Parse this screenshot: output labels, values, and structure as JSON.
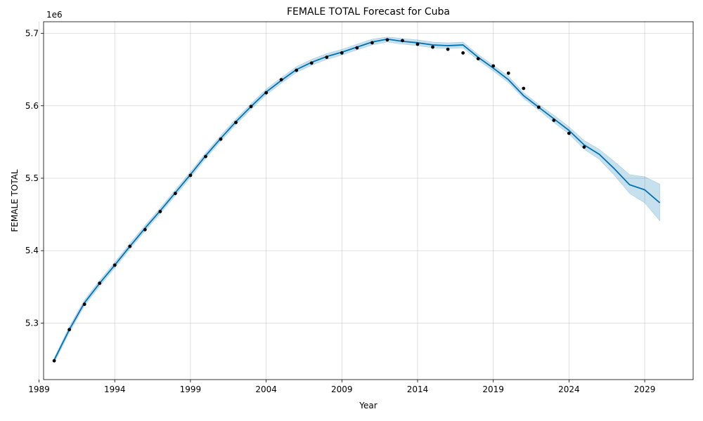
{
  "chart_data": {
    "type": "line",
    "title": "FEMALE TOTAL Forecast for Cuba",
    "xlabel": "Year",
    "ylabel": "FEMALE TOTAL",
    "y_offset_text": "1e6",
    "xlim": [
      1989.3,
      2032.2
    ],
    "ylim": [
      5222000,
      5716000
    ],
    "x_ticks": [
      1989,
      1994,
      1999,
      2004,
      2009,
      2014,
      2019,
      2024,
      2029
    ],
    "x_tick_labels": [
      "1989",
      "1994",
      "1999",
      "2004",
      "2009",
      "2014",
      "2019",
      "2024",
      "2029"
    ],
    "y_ticks": [
      5300000,
      5400000,
      5500000,
      5600000,
      5700000
    ],
    "y_tick_labels": [
      "5.3",
      "5.4",
      "5.5",
      "5.6",
      "5.7"
    ],
    "grid": true,
    "colors": {
      "forecast": "#0072B2",
      "band": "#0072B2",
      "observed": "#000000"
    },
    "series": [
      {
        "role": "observed",
        "style": "points",
        "x": [
          1990,
          1991,
          1992,
          1993,
          1994,
          1995,
          1996,
          1997,
          1998,
          1999,
          2000,
          2001,
          2002,
          2003,
          2004,
          2005,
          2006,
          2007,
          2008,
          2009,
          2010,
          2011,
          2012,
          2013,
          2014,
          2015,
          2016,
          2017,
          2018,
          2019,
          2020,
          2021,
          2022,
          2023,
          2024,
          2025
        ],
        "values": [
          5248000,
          5291000,
          5326000,
          5355000,
          5380000,
          5406000,
          5429000,
          5454000,
          5479000,
          5504000,
          5530000,
          5554000,
          5577000,
          5599000,
          5618000,
          5636000,
          5649000,
          5659000,
          5667000,
          5673000,
          5680000,
          5687000,
          5691000,
          5690000,
          5685000,
          5681000,
          5678000,
          5673000,
          5665000,
          5655000,
          5645000,
          5624000,
          5598000,
          5580000,
          5562000,
          5543000
        ]
      },
      {
        "role": "forecast",
        "style": "line",
        "x": [
          1990,
          1991,
          1992,
          1993,
          1994,
          1995,
          1996,
          1997,
          1998,
          1999,
          2000,
          2001,
          2002,
          2003,
          2004,
          2005,
          2006,
          2007,
          2008,
          2009,
          2010,
          2011,
          2012,
          2013,
          2014,
          2015,
          2016,
          2017,
          2018,
          2019,
          2020,
          2021,
          2022,
          2023,
          2024,
          2025,
          2026,
          2027,
          2028,
          2029,
          2030
        ],
        "values": [
          5249000,
          5291000,
          5328000,
          5355000,
          5380000,
          5406000,
          5431000,
          5455000,
          5480000,
          5505000,
          5531000,
          5555000,
          5578000,
          5599000,
          5619000,
          5635000,
          5650000,
          5660000,
          5668000,
          5674000,
          5681000,
          5688000,
          5692000,
          5689000,
          5687000,
          5684000,
          5683000,
          5684000,
          5667000,
          5652000,
          5636000,
          5614000,
          5598000,
          5582000,
          5566000,
          5546000,
          5533000,
          5513000,
          5491000,
          5484000,
          5466000
        ]
      },
      {
        "role": "uncertainty_upper",
        "style": "band",
        "x": [
          1990,
          1991,
          1992,
          1993,
          1994,
          1995,
          1996,
          1997,
          1998,
          1999,
          2000,
          2001,
          2002,
          2003,
          2004,
          2005,
          2006,
          2007,
          2008,
          2009,
          2010,
          2011,
          2012,
          2013,
          2014,
          2015,
          2016,
          2017,
          2018,
          2019,
          2020,
          2021,
          2022,
          2023,
          2024,
          2025,
          2026,
          2027,
          2028,
          2029,
          2030
        ],
        "values": [
          5252000,
          5295000,
          5332000,
          5359000,
          5384000,
          5410000,
          5435000,
          5459000,
          5484000,
          5509000,
          5535000,
          5559000,
          5582000,
          5603000,
          5623000,
          5639000,
          5654000,
          5664000,
          5672000,
          5678000,
          5685000,
          5692000,
          5695000,
          5693000,
          5691000,
          5688000,
          5687000,
          5688000,
          5671000,
          5656000,
          5641000,
          5618000,
          5602000,
          5587000,
          5571000,
          5552000,
          5540000,
          5523000,
          5505000,
          5502000,
          5492000
        ]
      },
      {
        "role": "uncertainty_lower",
        "style": "band",
        "x": [
          1990,
          1991,
          1992,
          1993,
          1994,
          1995,
          1996,
          1997,
          1998,
          1999,
          2000,
          2001,
          2002,
          2003,
          2004,
          2005,
          2006,
          2007,
          2008,
          2009,
          2010,
          2011,
          2012,
          2013,
          2014,
          2015,
          2016,
          2017,
          2018,
          2019,
          2020,
          2021,
          2022,
          2023,
          2024,
          2025,
          2026,
          2027,
          2028,
          2029,
          2030
        ],
        "values": [
          5245000,
          5287000,
          5324000,
          5351000,
          5376000,
          5402000,
          5427000,
          5451000,
          5476000,
          5501000,
          5527000,
          5551000,
          5574000,
          5595000,
          5615000,
          5631000,
          5646000,
          5656000,
          5664000,
          5670000,
          5677000,
          5684000,
          5688000,
          5685000,
          5683000,
          5680000,
          5679000,
          5680000,
          5663000,
          5648000,
          5632000,
          5610000,
          5594000,
          5577000,
          5561000,
          5540000,
          5526000,
          5504000,
          5479000,
          5466000,
          5441000
        ]
      }
    ]
  }
}
